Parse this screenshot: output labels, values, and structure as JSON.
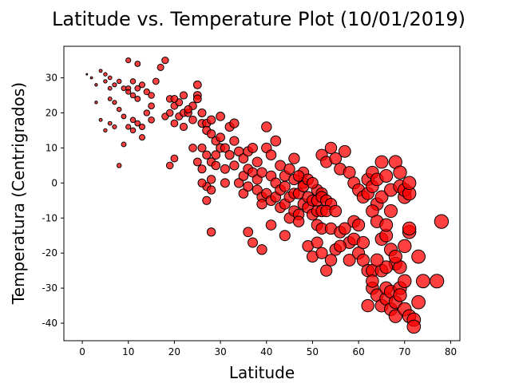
{
  "chart_data": {
    "type": "scatter",
    "title": "Latitude vs. Temperature Plot (10/01/2019)",
    "xlabel": "Latitude",
    "ylabel": "Temperatura (Centrigrados)",
    "xlim": [
      -4,
      82
    ],
    "ylim": [
      -45,
      39
    ],
    "xticks": [
      0,
      10,
      20,
      30,
      40,
      50,
      60,
      70,
      80
    ],
    "yticks": [
      -40,
      -30,
      -20,
      -10,
      0,
      10,
      20,
      30
    ],
    "grid": false,
    "marker_size_encoding": "latitude",
    "colors": {
      "fill": "#ff0000",
      "edge": "#000000",
      "fill_alpha": 0.75
    },
    "points": [
      [
        1,
        31
      ],
      [
        2,
        30
      ],
      [
        3,
        28
      ],
      [
        4,
        32
      ],
      [
        5,
        31
      ],
      [
        5,
        29
      ],
      [
        6,
        30
      ],
      [
        6,
        27
      ],
      [
        7,
        28
      ],
      [
        8,
        29
      ],
      [
        9,
        27
      ],
      [
        10,
        27
      ],
      [
        10,
        26
      ],
      [
        11,
        29
      ],
      [
        12,
        27
      ],
      [
        13,
        28
      ],
      [
        14,
        26
      ],
      [
        15,
        25
      ],
      [
        3,
        23
      ],
      [
        6,
        24
      ],
      [
        7,
        23
      ],
      [
        11,
        25
      ],
      [
        12,
        24
      ],
      [
        4,
        18
      ],
      [
        5,
        15
      ],
      [
        6,
        17
      ],
      [
        7,
        16
      ],
      [
        8,
        21
      ],
      [
        9,
        19
      ],
      [
        10,
        16
      ],
      [
        11,
        15
      ],
      [
        11,
        18
      ],
      [
        12,
        17
      ],
      [
        13,
        16
      ],
      [
        14,
        20
      ],
      [
        15,
        18
      ],
      [
        9,
        11
      ],
      [
        8,
        5
      ],
      [
        16,
        29
      ],
      [
        17,
        33
      ],
      [
        18,
        35
      ],
      [
        12,
        34
      ],
      [
        10,
        35
      ],
      [
        15,
        22
      ],
      [
        13,
        13
      ],
      [
        18,
        19
      ],
      [
        19,
        20
      ],
      [
        20,
        22
      ],
      [
        20,
        17
      ],
      [
        21,
        19
      ],
      [
        21,
        23
      ],
      [
        22,
        20
      ],
      [
        22,
        16
      ],
      [
        23,
        20
      ],
      [
        24,
        18
      ],
      [
        24,
        22
      ],
      [
        25,
        25
      ],
      [
        25,
        28
      ],
      [
        25,
        24
      ],
      [
        19,
        24
      ],
      [
        20,
        24
      ],
      [
        22,
        25
      ],
      [
        23,
        21
      ],
      [
        26,
        20
      ],
      [
        26,
        17
      ],
      [
        27,
        17
      ],
      [
        27,
        15
      ],
      [
        28,
        14
      ],
      [
        28,
        18
      ],
      [
        29,
        12
      ],
      [
        29,
        8
      ],
      [
        30,
        10
      ],
      [
        30,
        13
      ],
      [
        26,
        10
      ],
      [
        27,
        8
      ],
      [
        28,
        6
      ],
      [
        29,
        5
      ],
      [
        28,
        1
      ],
      [
        27,
        -1
      ],
      [
        28,
        -2
      ],
      [
        26,
        4
      ],
      [
        25,
        6
      ],
      [
        19,
        5
      ],
      [
        20,
        7
      ],
      [
        24,
        10
      ],
      [
        26,
        0
      ],
      [
        27,
        -5
      ],
      [
        28,
        -14
      ],
      [
        31,
        4
      ],
      [
        31,
        10
      ],
      [
        32,
        8
      ],
      [
        32,
        16
      ],
      [
        33,
        12
      ],
      [
        33,
        5
      ],
      [
        34,
        9
      ],
      [
        34,
        0
      ],
      [
        35,
        2
      ],
      [
        35,
        -3
      ],
      [
        35,
        7
      ],
      [
        36,
        4
      ],
      [
        36,
        -1
      ],
      [
        36,
        9
      ],
      [
        37,
        10
      ],
      [
        37,
        3
      ],
      [
        38,
        6
      ],
      [
        38,
        -2
      ],
      [
        38,
        1
      ],
      [
        39,
        -4
      ],
      [
        39,
        -6
      ],
      [
        39,
        3
      ],
      [
        40,
        -3
      ],
      [
        40,
        10
      ],
      [
        40,
        16
      ],
      [
        41,
        2
      ],
      [
        41,
        8
      ],
      [
        41,
        -5
      ],
      [
        42,
        -4
      ],
      [
        42,
        0
      ],
      [
        42,
        12
      ],
      [
        43,
        -2
      ],
      [
        43,
        5
      ],
      [
        43,
        -7
      ],
      [
        44,
        -6
      ],
      [
        44,
        2
      ],
      [
        44,
        -1
      ],
      [
        45,
        -4
      ],
      [
        45,
        -10
      ],
      [
        45,
        4
      ],
      [
        46,
        -3
      ],
      [
        46,
        -8
      ],
      [
        46,
        7
      ],
      [
        47,
        -3
      ],
      [
        47,
        -9
      ],
      [
        48,
        0
      ],
      [
        48,
        -6
      ],
      [
        48,
        3
      ],
      [
        49,
        -4
      ],
      [
        49,
        -7
      ],
      [
        50,
        -5
      ],
      [
        50,
        -9
      ],
      [
        51,
        -2
      ],
      [
        51,
        -12
      ],
      [
        51,
        -8
      ],
      [
        52,
        -8
      ],
      [
        52,
        -13
      ],
      [
        52,
        -3
      ],
      [
        36,
        -14
      ],
      [
        37,
        -17
      ],
      [
        39,
        -19
      ],
      [
        41,
        -12
      ],
      [
        44,
        -15
      ],
      [
        47,
        -11
      ],
      [
        49,
        -18
      ],
      [
        50,
        -21
      ],
      [
        51,
        -17
      ],
      [
        52,
        -20
      ],
      [
        31,
        0
      ],
      [
        33,
        17
      ],
      [
        30,
        19
      ],
      [
        46,
        1
      ],
      [
        47,
        2
      ],
      [
        48,
        -1
      ],
      [
        49,
        1
      ],
      [
        50,
        0
      ],
      [
        51,
        -5
      ],
      [
        52,
        -4
      ],
      [
        53,
        -5
      ],
      [
        54,
        -13
      ],
      [
        54,
        -6
      ],
      [
        53,
        -8
      ],
      [
        55,
        -8
      ],
      [
        56,
        -14
      ],
      [
        57,
        -13
      ],
      [
        58,
        -17
      ],
      [
        58,
        -22
      ],
      [
        59,
        -16
      ],
      [
        59,
        -11
      ],
      [
        60,
        -12
      ],
      [
        60,
        -20
      ],
      [
        61,
        -22
      ],
      [
        61,
        -17
      ],
      [
        62,
        -25
      ],
      [
        63,
        -25
      ],
      [
        53,
        -25
      ],
      [
        54,
        -22
      ],
      [
        55,
        -19
      ],
      [
        56,
        -18
      ],
      [
        52,
        8
      ],
      [
        53,
        6
      ],
      [
        54,
        10
      ],
      [
        55,
        7
      ],
      [
        56,
        4
      ],
      [
        57,
        9
      ],
      [
        58,
        3
      ],
      [
        59,
        0
      ],
      [
        60,
        -2
      ],
      [
        61,
        -4
      ],
      [
        62,
        1
      ],
      [
        62,
        -3
      ],
      [
        63,
        3
      ],
      [
        63,
        -1
      ],
      [
        64,
        -6
      ],
      [
        64,
        1
      ],
      [
        65,
        -4
      ],
      [
        65,
        6
      ],
      [
        66,
        2
      ],
      [
        67,
        -8
      ],
      [
        67,
        -2
      ],
      [
        68,
        6
      ],
      [
        69,
        -1
      ],
      [
        69,
        3
      ],
      [
        70,
        -4
      ],
      [
        70,
        -2
      ],
      [
        71,
        -3
      ],
      [
        71,
        0
      ],
      [
        63,
        -8
      ],
      [
        64,
        -11
      ],
      [
        63,
        -30
      ],
      [
        64,
        -32
      ],
      [
        65,
        -35
      ],
      [
        66,
        -33
      ],
      [
        66,
        -30
      ],
      [
        67,
        -31
      ],
      [
        67,
        -36
      ],
      [
        68,
        -34
      ],
      [
        68,
        -38
      ],
      [
        69,
        -30
      ],
      [
        69,
        -32
      ],
      [
        70,
        -36
      ],
      [
        70,
        -28
      ],
      [
        71,
        -38
      ],
      [
        72,
        -39
      ],
      [
        72,
        -41
      ],
      [
        73,
        -34
      ],
      [
        73,
        -21
      ],
      [
        68,
        -23
      ],
      [
        69,
        -24
      ],
      [
        70,
        -18
      ],
      [
        71,
        -14
      ],
      [
        65,
        -16
      ],
      [
        66,
        -15
      ],
      [
        67,
        -19
      ],
      [
        68,
        -21
      ],
      [
        65,
        -25
      ],
      [
        66,
        -24
      ],
      [
        64,
        -22
      ],
      [
        63,
        -28
      ],
      [
        62,
        -35
      ],
      [
        77,
        -28
      ],
      [
        78,
        -11
      ],
      [
        74,
        -28
      ],
      [
        71,
        -13
      ],
      [
        66,
        -12
      ]
    ]
  }
}
